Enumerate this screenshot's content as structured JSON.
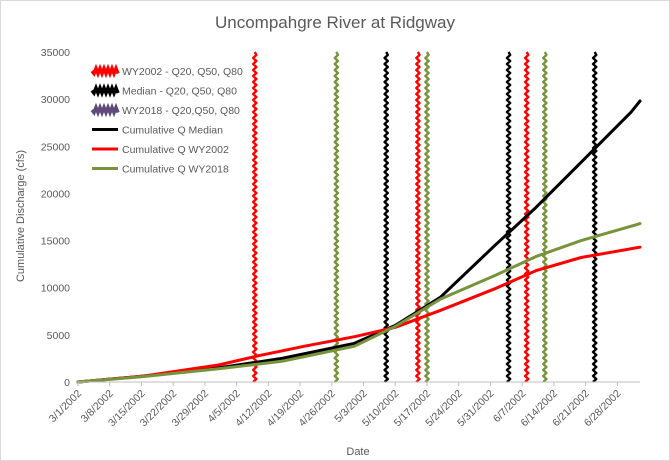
{
  "chart_data": {
    "type": "line",
    "title": "Uncompahgre River at Ridgway",
    "xlabel": "Date",
    "ylabel": "Cumulative Discharge (cfs)",
    "ylim": [
      0,
      35000
    ],
    "yticks": [
      0,
      5000,
      10000,
      15000,
      20000,
      25000,
      30000,
      35000
    ],
    "xlim": [
      "2002-03-01",
      "2002-07-03"
    ],
    "xtick_dates": [
      "2002-03-01",
      "2002-03-08",
      "2002-03-15",
      "2002-03-22",
      "2002-03-29",
      "2002-04-05",
      "2002-04-12",
      "2002-04-19",
      "2002-04-26",
      "2002-05-03",
      "2002-05-10",
      "2002-05-17",
      "2002-05-24",
      "2002-05-31",
      "2002-06-07",
      "2002-06-14",
      "2002-06-21",
      "2002-06-28"
    ],
    "xtick_labels": [
      "3/1/2002",
      "3/8/2002",
      "3/15/2002",
      "3/22/2002",
      "3/29/2002",
      "4/5/2002",
      "4/12/2002",
      "4/19/2002",
      "4/26/2002",
      "5/3/2002",
      "5/10/2002",
      "5/17/2002",
      "5/24/2002",
      "5/31/2002",
      "6/7/2002",
      "6/14/2002",
      "6/21/2002",
      "6/28/2002"
    ],
    "grid": false,
    "legend_position": "top-left",
    "series": [
      {
        "name": "Cumulative Q Median",
        "color": "#000000",
        "x": [
          "2002-03-01",
          "2002-03-15",
          "2002-04-01",
          "2002-04-15",
          "2002-05-01",
          "2002-05-10",
          "2002-05-20",
          "2002-06-01",
          "2002-06-10",
          "2002-06-20",
          "2002-07-01",
          "2002-07-03"
        ],
        "y": [
          0,
          600,
          1500,
          2500,
          4100,
          6000,
          9000,
          14500,
          18500,
          23300,
          28600,
          29800
        ]
      },
      {
        "name": "Cumulative Q WY2002",
        "color": "#ff0000",
        "x": [
          "2002-03-01",
          "2002-03-15",
          "2002-04-01",
          "2002-04-10",
          "2002-04-20",
          "2002-05-01",
          "2002-05-10",
          "2002-05-20",
          "2002-06-01",
          "2002-06-10",
          "2002-06-20",
          "2002-07-03"
        ],
        "y": [
          0,
          600,
          1800,
          2800,
          3800,
          4800,
          5800,
          7600,
          9900,
          11800,
          13200,
          14300
        ]
      },
      {
        "name": "Cumulative Q WY2018",
        "color": "#77933c",
        "x": [
          "2002-03-01",
          "2002-03-15",
          "2002-04-01",
          "2002-04-15",
          "2002-05-01",
          "2002-05-10",
          "2002-05-20",
          "2002-06-01",
          "2002-06-10",
          "2002-06-20",
          "2002-07-03"
        ],
        "y": [
          0,
          550,
          1400,
          2200,
          3800,
          5900,
          8800,
          11300,
          13300,
          15000,
          16800
        ]
      }
    ],
    "vertical_lines": [
      {
        "name": "WY2002 - Q20, Q50, Q80",
        "color": "#ff0000",
        "dates": [
          "2002-04-09",
          "2002-05-15",
          "2002-06-08"
        ]
      },
      {
        "name": "Median - Q20, Q50, Q80",
        "color": "#000000",
        "dates": [
          "2002-05-08",
          "2002-06-04",
          "2002-06-23"
        ]
      },
      {
        "name": "WY2018 - Q20,Q50, Q80",
        "color": "#77933c",
        "dates": [
          "2002-04-27",
          "2002-05-17",
          "2002-06-12"
        ]
      }
    ],
    "legend_entries": [
      {
        "label": "WY2002 - Q20, Q50, Q80",
        "color": "#ff0000",
        "style": "thick"
      },
      {
        "label": "Median - Q20, Q50, Q80",
        "color": "#000000",
        "style": "thick"
      },
      {
        "label": "WY2018 - Q20,Q50, Q80",
        "color": "#604a7b",
        "style": "thick"
      },
      {
        "label": "Cumulative Q Median",
        "color": "#000000",
        "style": "line"
      },
      {
        "label": "Cumulative Q WY2002",
        "color": "#ff0000",
        "style": "line"
      },
      {
        "label": "Cumulative Q WY2018",
        "color": "#77933c",
        "style": "line"
      }
    ]
  }
}
